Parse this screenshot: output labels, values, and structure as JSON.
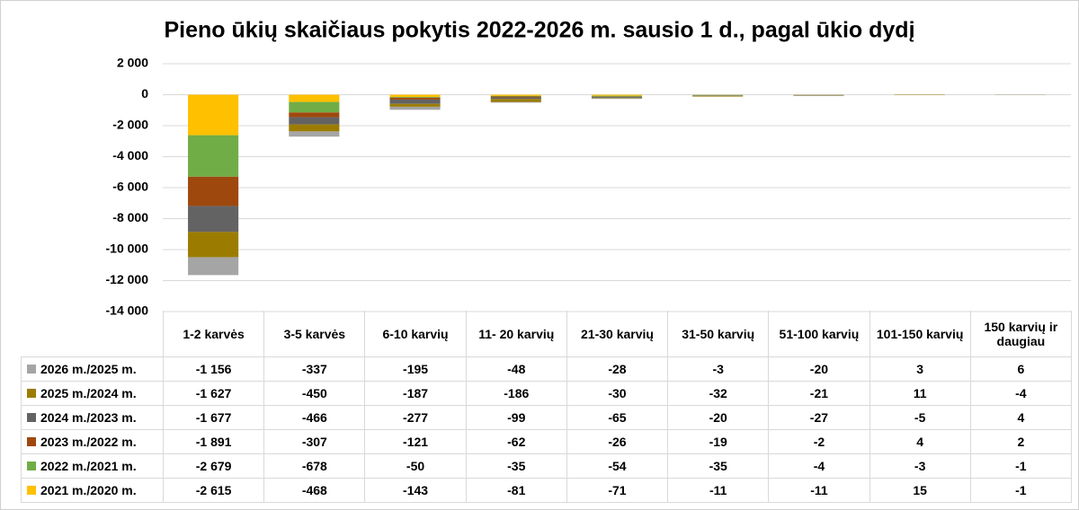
{
  "chart_data": {
    "type": "stacked_bar",
    "title": "Pieno ūkių skaičiaus pokytis 2022-2026 m. sausio 1 d., pagal ūkio dydį",
    "categories": [
      "1-2 karvės",
      "3-5 karvės",
      "6-10 karvių",
      "11- 20 karvių",
      "21-30 karvių",
      "31-50 karvių",
      "51-100 karvių",
      "101-150 karvių",
      "150 karvių ir daugiau"
    ],
    "ylim": [
      -14000,
      2000
    ],
    "yticks": [
      {
        "value": 2000,
        "label": "2 000"
      },
      0,
      {
        "value": -2000,
        "label": "-2 000"
      },
      {
        "value": -4000,
        "label": "-4 000"
      },
      {
        "value": -6000,
        "label": "-6 000"
      },
      {
        "value": -8000,
        "label": "-8 000"
      },
      {
        "value": -10000,
        "label": "-10 000"
      },
      {
        "value": -12000,
        "label": "-12 000"
      },
      {
        "value": -14000,
        "label": "-14 000"
      }
    ],
    "grid": true,
    "series": [
      {
        "name": "2026 m./2025 m.",
        "color": "#a5a5a5",
        "values": [
          -1156,
          -337,
          -195,
          -48,
          -28,
          -3,
          -20,
          3,
          6
        ],
        "value_labels": [
          "-1 156",
          "-337",
          "-195",
          "-48",
          "-28",
          "-3",
          "-20",
          "3",
          "6"
        ]
      },
      {
        "name": "2025 m./2024 m.",
        "color": "#9c7c00",
        "values": [
          -1627,
          -450,
          -187,
          -186,
          -30,
          -32,
          -21,
          11,
          -4
        ],
        "value_labels": [
          "-1 627",
          "-450",
          "-187",
          "-186",
          "-30",
          "-32",
          "-21",
          "11",
          "-4"
        ]
      },
      {
        "name": "2024 m./2023 m.",
        "color": "#636363",
        "values": [
          -1677,
          -466,
          -277,
          -99,
          -65,
          -20,
          -27,
          -5,
          4
        ],
        "value_labels": [
          "-1 677",
          "-466",
          "-277",
          "-99",
          "-65",
          "-20",
          "-27",
          "-5",
          "4"
        ]
      },
      {
        "name": "2023 m./2022 m.",
        "color": "#9e480e",
        "values": [
          -1891,
          -307,
          -121,
          -62,
          -26,
          -19,
          -2,
          4,
          2
        ],
        "value_labels": [
          "-1 891",
          "-307",
          "-121",
          "-62",
          "-26",
          "-19",
          "-2",
          "4",
          "2"
        ]
      },
      {
        "name": "2022 m./2021 m.",
        "color": "#70ad47",
        "values": [
          -2679,
          -678,
          -50,
          -35,
          -54,
          -35,
          -4,
          -3,
          -1
        ],
        "value_labels": [
          "-2 679",
          "-678",
          "-50",
          "-35",
          "-54",
          "-35",
          "-4",
          "-3",
          "-1"
        ]
      },
      {
        "name": "2021 m./2020 m.",
        "color": "#ffc000",
        "values": [
          -2615,
          -468,
          -143,
          -81,
          -71,
          -11,
          -11,
          15,
          -1
        ],
        "value_labels": [
          "-2 615",
          "-468",
          "-143",
          "-81",
          "-71",
          "-11",
          "-11",
          "15",
          "-1"
        ]
      }
    ]
  }
}
